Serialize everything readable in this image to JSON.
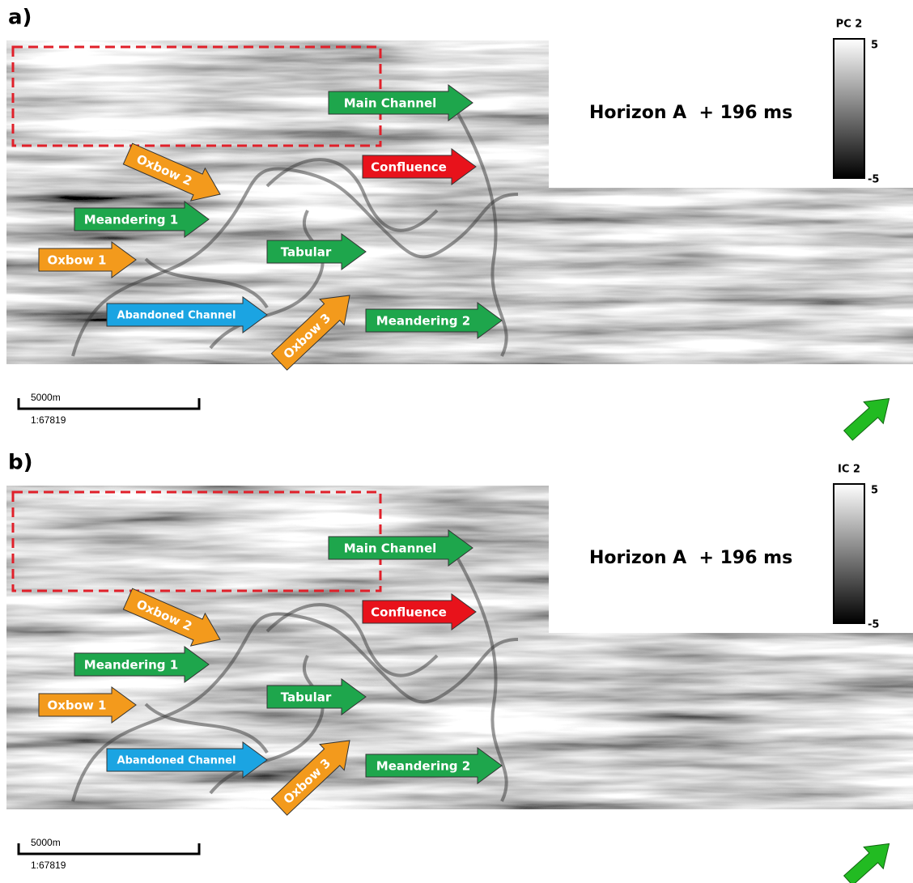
{
  "panels": [
    {
      "label": "a)",
      "legend": {
        "title": "PC 2",
        "max": 5,
        "min": -5
      },
      "horizon": "Horizon A  + 196 ms",
      "arrows": [
        "Main Channel",
        "Confluence",
        "Oxbow 2",
        "Meandering 1",
        "Oxbow 1",
        "Tabular",
        "Abandoned Channel",
        "Oxbow 3",
        "Meandering 2"
      ],
      "scale": {
        "distance": "5000m",
        "ratio": "1:67819"
      }
    },
    {
      "label": "b)",
      "legend": {
        "title": "IC 2",
        "max": 5,
        "min": -5
      },
      "horizon": "Horizon A  + 196 ms",
      "arrows": [
        "Main Channel",
        "Confluence",
        "Oxbow 2",
        "Meandering 1",
        "Oxbow 1",
        "Tabular",
        "Abandoned Channel",
        "Oxbow 3",
        "Meandering 2"
      ],
      "scale": {
        "distance": "5000m",
        "ratio": "1:67819"
      }
    }
  ]
}
